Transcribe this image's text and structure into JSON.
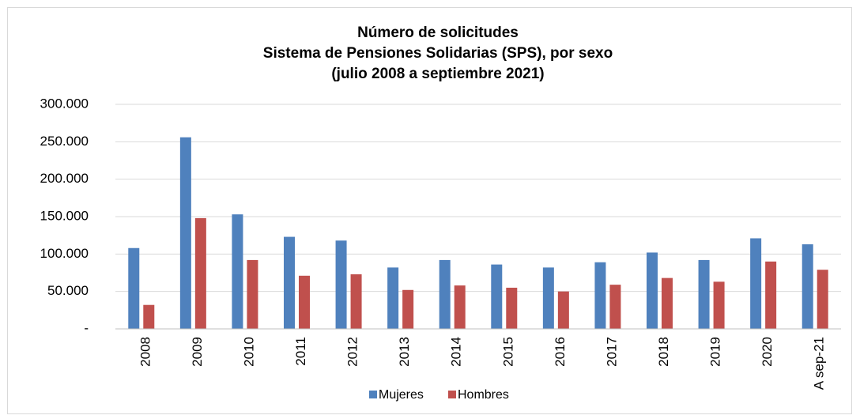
{
  "chart_data": {
    "type": "bar",
    "title": [
      "Número de solicitudes",
      "Sistema de Pensiones Solidarias (SPS), por sexo",
      "(julio 2008 a septiembre 2021)"
    ],
    "categories": [
      "2008",
      "2009",
      "2010",
      "2011",
      "2012",
      "2013",
      "2014",
      "2015",
      "2016",
      "2017",
      "2018",
      "2019",
      "2020",
      "A sep-21"
    ],
    "series": [
      {
        "name": "Mujeres",
        "color": "#4f81bd",
        "values": [
          108000,
          256000,
          153000,
          123000,
          118000,
          82000,
          92000,
          86000,
          82000,
          89000,
          102000,
          92000,
          121000,
          113000
        ]
      },
      {
        "name": "Hombres",
        "color": "#c0504d",
        "values": [
          32000,
          148000,
          92000,
          71000,
          73000,
          52000,
          58000,
          55000,
          50000,
          59000,
          68000,
          63000,
          90000,
          79000
        ]
      }
    ],
    "ylim": [
      0,
      300000
    ],
    "yticks": [
      {
        "value": 0,
        "label": "-"
      },
      {
        "value": 50000,
        "label": "50.000"
      },
      {
        "value": 100000,
        "label": "100.000"
      },
      {
        "value": 150000,
        "label": "150.000"
      },
      {
        "value": 200000,
        "label": "200.000"
      },
      {
        "value": 250000,
        "label": "250.000"
      },
      {
        "value": 300000,
        "label": "300.000"
      }
    ],
    "grid": true,
    "legend": "bottom"
  }
}
